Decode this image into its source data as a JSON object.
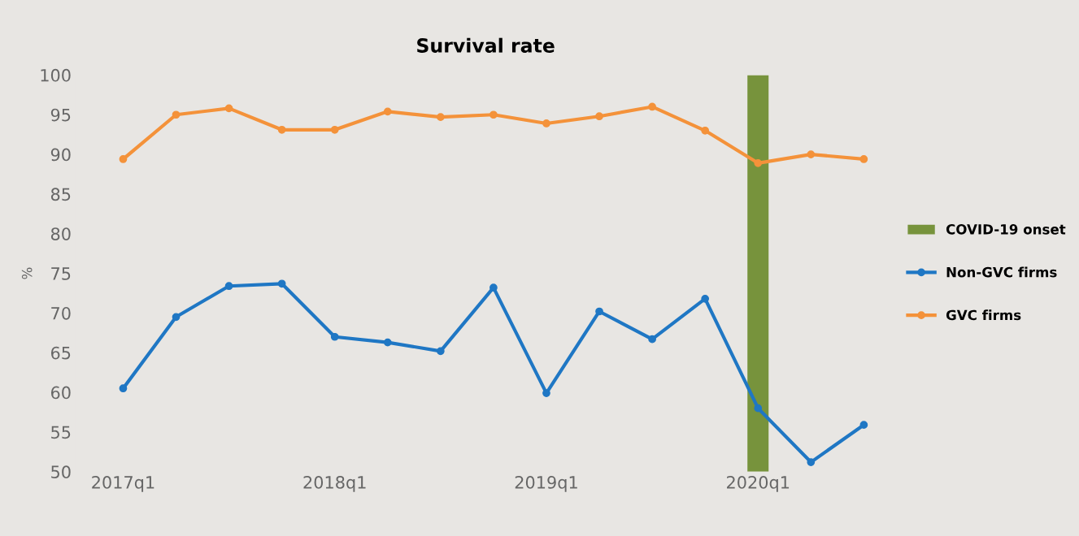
{
  "chart_data": {
    "type": "line",
    "title": "Survival rate",
    "ylabel": "%",
    "categories": [
      "2017q1",
      null,
      null,
      null,
      "2018q1",
      null,
      null,
      null,
      "2019q1",
      null,
      null,
      null,
      "2020q1",
      null,
      null
    ],
    "series": [
      {
        "name": "COVID-19 onset",
        "type": "bar",
        "color": "#77933c",
        "values": [
          null,
          null,
          null,
          null,
          null,
          null,
          null,
          null,
          null,
          null,
          null,
          null,
          100,
          null,
          null
        ]
      },
      {
        "name": "Non-GVC firms",
        "color": "#1f77c4",
        "values": [
          60.5,
          69.5,
          73.4,
          73.7,
          67.0,
          66.3,
          65.2,
          73.2,
          59.9,
          70.2,
          66.7,
          71.8,
          58.0,
          51.2,
          55.9
        ]
      },
      {
        "name": "GVC firms",
        "color": "#f4923a",
        "values": [
          89.4,
          95.0,
          95.8,
          93.1,
          93.1,
          95.4,
          94.7,
          95.0,
          93.9,
          94.8,
          96.0,
          93.0,
          88.9,
          90.0,
          89.4
        ]
      }
    ],
    "ylim": [
      50,
      100
    ],
    "yticks": [
      50,
      55,
      60,
      65,
      70,
      75,
      80,
      85,
      90,
      95,
      100
    ],
    "marker": "circle",
    "grid": false,
    "legend": "right"
  }
}
